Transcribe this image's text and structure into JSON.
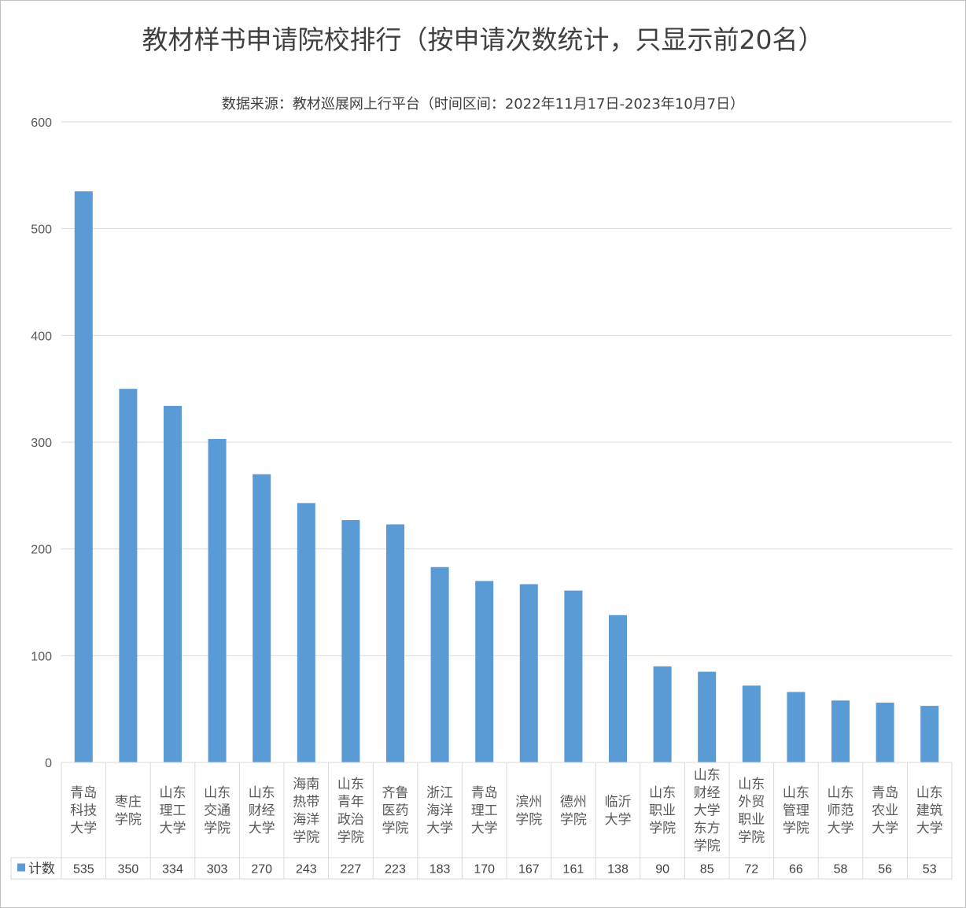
{
  "title": "教材样书申请院校排行（按申请次数统计，只显示前20名）",
  "subtitle": "数据来源：教材巡展网上行平台（时间区间：2022年11月17日-2023年10月7日）",
  "colors": {
    "bar": "#5b9bd5",
    "grid": "#d9d9d9",
    "text": "#404040",
    "border": "#bfbfbf"
  },
  "chart_data": {
    "type": "bar",
    "title": "教材样书申请院校排行（按申请次数统计，只显示前20名）",
    "subtitle": "数据来源：教材巡展网上行平台（时间区间：2022年11月17日-2023年10月7日）",
    "categories": [
      [
        "青岛",
        "科技",
        "大学"
      ],
      [
        "枣庄",
        "学院"
      ],
      [
        "山东",
        "理工",
        "大学"
      ],
      [
        "山东",
        "交通",
        "学院"
      ],
      [
        "山东",
        "财经",
        "大学"
      ],
      [
        "海南",
        "热带",
        "海洋",
        "学院"
      ],
      [
        "山东",
        "青年",
        "政治",
        "学院"
      ],
      [
        "齐鲁",
        "医药",
        "学院"
      ],
      [
        "浙江",
        "海洋",
        "大学"
      ],
      [
        "青岛",
        "理工",
        "大学"
      ],
      [
        "滨州",
        "学院"
      ],
      [
        "德州",
        "学院"
      ],
      [
        "临沂",
        "大学"
      ],
      [
        "山东",
        "职业",
        "学院"
      ],
      [
        "山东",
        "财经",
        "大学",
        "东方",
        "学院"
      ],
      [
        "山东",
        "外贸",
        "职业",
        "学院"
      ],
      [
        "山东",
        "管理",
        "学院"
      ],
      [
        "山东",
        "师范",
        "大学"
      ],
      [
        "青岛",
        "农业",
        "大学"
      ],
      [
        "山东",
        "建筑",
        "大学"
      ]
    ],
    "series": [
      {
        "name": "计数",
        "values": [
          535,
          350,
          334,
          303,
          270,
          243,
          227,
          223,
          183,
          170,
          167,
          161,
          138,
          90,
          85,
          72,
          66,
          58,
          56,
          53
        ]
      }
    ],
    "ylim": [
      0,
      600
    ],
    "yticks": [
      0,
      100,
      200,
      300,
      400,
      500,
      600
    ],
    "grid": true,
    "legend": "data-table-left",
    "data_table": true
  }
}
